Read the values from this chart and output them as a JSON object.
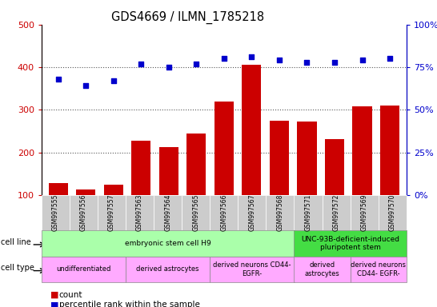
{
  "title": "GDS4669 / ILMN_1785218",
  "samples": [
    "GSM997555",
    "GSM997556",
    "GSM997557",
    "GSM997563",
    "GSM997564",
    "GSM997565",
    "GSM997566",
    "GSM997567",
    "GSM997568",
    "GSM997571",
    "GSM997572",
    "GSM997569",
    "GSM997570"
  ],
  "counts": [
    127,
    112,
    125,
    228,
    212,
    245,
    320,
    405,
    275,
    272,
    232,
    308,
    310
  ],
  "percentiles": [
    68,
    64,
    67,
    77,
    75,
    77,
    80,
    81,
    79,
    78,
    78,
    79,
    80
  ],
  "ylim_left": [
    100,
    500
  ],
  "ylim_right": [
    0,
    100
  ],
  "yticks_left": [
    100,
    200,
    300,
    400,
    500
  ],
  "yticks_right": [
    0,
    25,
    50,
    75,
    100
  ],
  "bar_color": "#cc0000",
  "dot_color": "#0000cc",
  "grid_dotted_color": "#555555",
  "bg_color": "#ffffff",
  "tick_gray": "#cccccc",
  "cell_line_groups": [
    {
      "label": "embryonic stem cell H9",
      "start": 0,
      "end": 9,
      "color": "#aaffaa"
    },
    {
      "label": "UNC-93B-deficient-induced\npluripotent stem",
      "start": 9,
      "end": 13,
      "color": "#44dd44"
    }
  ],
  "cell_type_groups": [
    {
      "label": "undifferentiated",
      "start": 0,
      "end": 3,
      "color": "#ffaaff"
    },
    {
      "label": "derived astrocytes",
      "start": 3,
      "end": 6,
      "color": "#ffaaff"
    },
    {
      "label": "derived neurons CD44-\nEGFR-",
      "start": 6,
      "end": 9,
      "color": "#ffaaff"
    },
    {
      "label": "derived\nastrocytes",
      "start": 9,
      "end": 11,
      "color": "#ffaaff"
    },
    {
      "label": "derived neurons\nCD44- EGFR-",
      "start": 11,
      "end": 13,
      "color": "#ffaaff"
    }
  ],
  "legend_count_color": "#cc0000",
  "legend_pct_color": "#0000cc"
}
